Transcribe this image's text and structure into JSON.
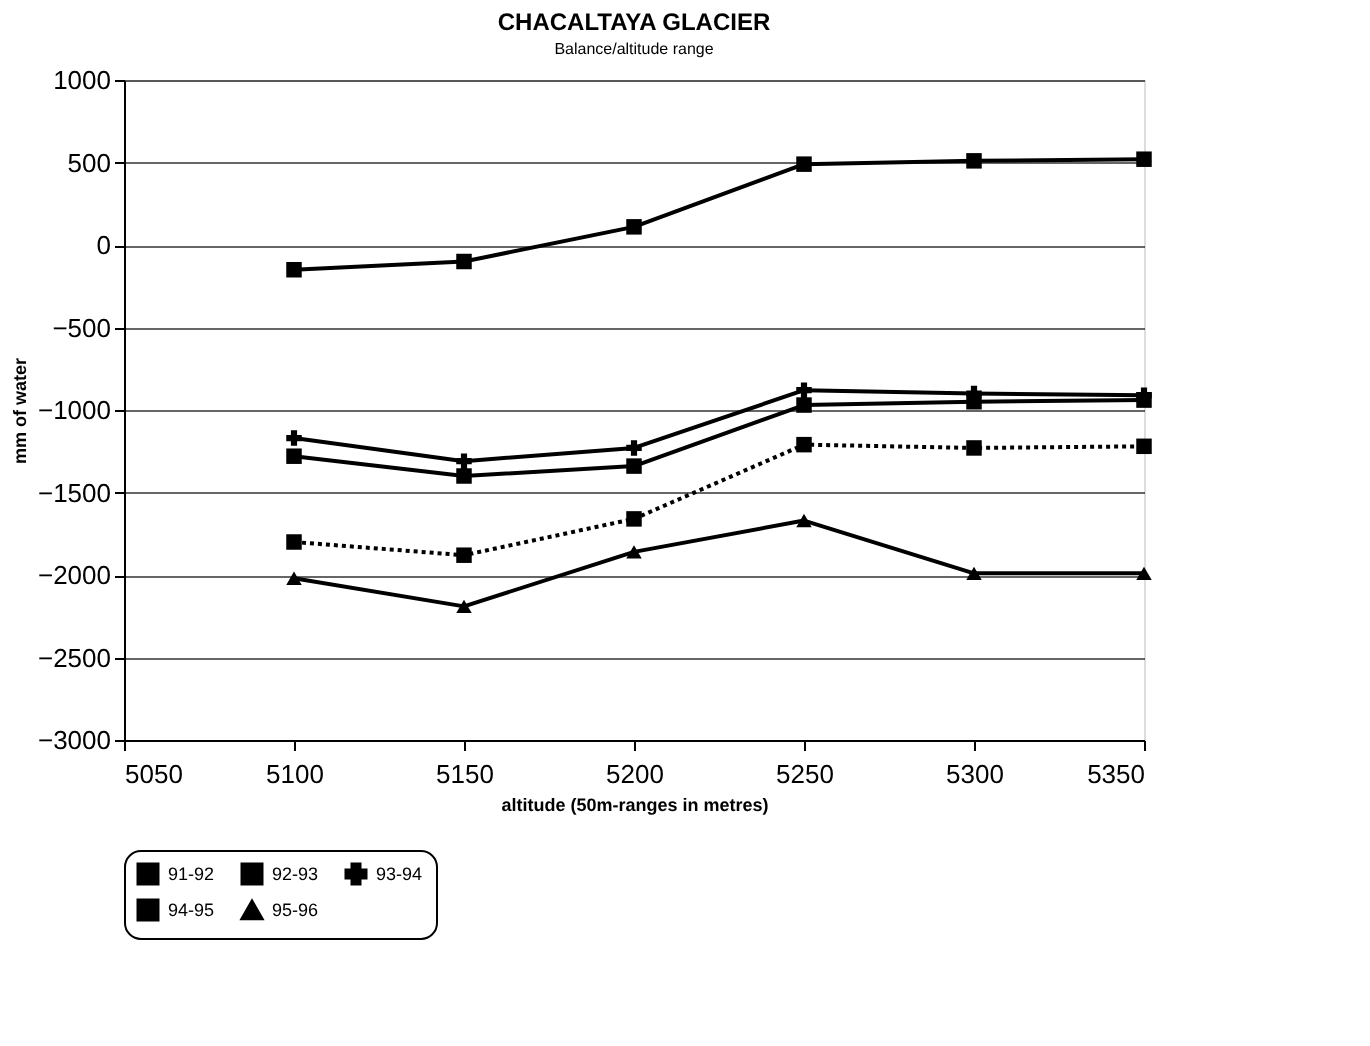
{
  "chart_data": {
    "type": "line",
    "title": "CHACALTAYA GLACIER",
    "subtitle": "Balance/altitude range",
    "xlabel": "altitude (50m-ranges in metres)",
    "ylabel": "mm of water",
    "x": [
      5100,
      5150,
      5200,
      5250,
      5300,
      5350
    ],
    "series": [
      {
        "name": "91-92",
        "color": "#000000",
        "marker": "square",
        "line_style": "solid",
        "values": [
          -150,
          -100,
          110,
          490,
          510,
          520
        ]
      },
      {
        "name": "92-93",
        "color": "#000000",
        "marker": "square",
        "line_style": "solid",
        "values": [
          -1280,
          -1400,
          -1340,
          -970,
          -950,
          -940
        ]
      },
      {
        "name": "93-94",
        "color": "#000000",
        "marker": "cross",
        "line_style": "solid",
        "values": [
          -1170,
          -1310,
          -1230,
          -880,
          -900,
          -910
        ]
      },
      {
        "name": "94-95",
        "color": "#000000",
        "marker": "square",
        "line_style": "dotted",
        "values": [
          -1800,
          -1880,
          -1660,
          -1210,
          -1230,
          -1220
        ]
      },
      {
        "name": "95-96",
        "color": "#000000",
        "marker": "triangle",
        "line_style": "solid",
        "values": [
          -2020,
          -2190,
          -1860,
          -1670,
          -1990,
          -1990
        ]
      }
    ],
    "xlim": [
      5050,
      5350
    ],
    "xticks": [
      5050,
      5100,
      5150,
      5200,
      5250,
      5300,
      5350
    ],
    "ylim": [
      -3000,
      1000
    ],
    "yticks": [
      -3000,
      -2500,
      -2000,
      -1500,
      -1000,
      -500,
      0,
      500,
      1000
    ],
    "grid": "y",
    "legend": "bottom"
  }
}
